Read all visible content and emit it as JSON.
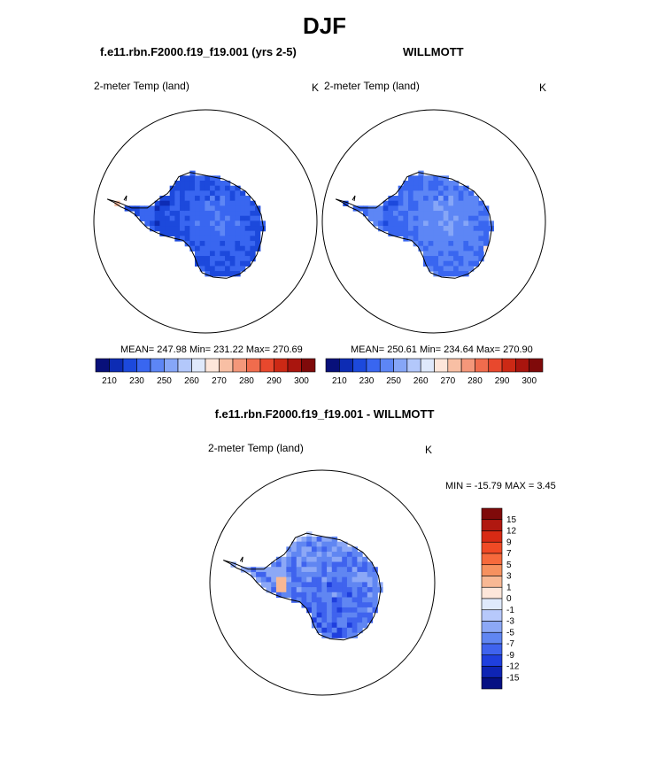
{
  "figure": {
    "title": "DJF",
    "panel_left_title": "f.e11.rbn.F2000.f19_f19.001 (yrs 2-5)",
    "panel_right_title": "WILLMOTT",
    "diff_title": "f.e11.rbn.F2000.f19_f19.001 - WILLMOTT"
  },
  "chart_data": [
    {
      "type": "heatmap",
      "id": "model",
      "title": "f.e11.rbn.F2000.f19_f19.001 (yrs 2-5)",
      "variable": "2-meter Temp (land)",
      "units": "K",
      "region": "Antarctica (south polar stereographic)",
      "stats": "MEAN= 247.98  Min= 231.22  Max= 270.69",
      "mean": 247.98,
      "min": 231.22,
      "max": 270.69,
      "colorbar_orientation": "horizontal",
      "colorbar_labels": [
        "210",
        "230",
        "250",
        "260",
        "270",
        "280",
        "290",
        "300"
      ],
      "colorbar_colors": [
        "#08107a",
        "#0d2cb4",
        "#1c49dc",
        "#3966f0",
        "#5d86f5",
        "#86a6f7",
        "#b3c8fb",
        "#dfe9fb",
        "#fde6da",
        "#f8bfa4",
        "#f4977a",
        "#f06c4d",
        "#e8482d",
        "#cc2915",
        "#a9150e",
        "#7f0a0a"
      ]
    },
    {
      "type": "heatmap",
      "id": "obs",
      "title": "WILLMOTT",
      "variable": "2-meter Temp (land)",
      "units": "K",
      "region": "Antarctica (south polar stereographic)",
      "stats": "MEAN= 250.61  Min= 234.64  Max= 270.90",
      "mean": 250.61,
      "min": 234.64,
      "max": 270.9,
      "colorbar_orientation": "horizontal",
      "colorbar_labels": [
        "210",
        "230",
        "250",
        "260",
        "270",
        "280",
        "290",
        "300"
      ],
      "colorbar_colors": [
        "#08107a",
        "#0d2cb4",
        "#1c49dc",
        "#3966f0",
        "#5d86f5",
        "#86a6f7",
        "#b3c8fb",
        "#dfe9fb",
        "#fde6da",
        "#f8bfa4",
        "#f4977a",
        "#f06c4d",
        "#e8482d",
        "#cc2915",
        "#a9150e",
        "#7f0a0a"
      ]
    },
    {
      "type": "heatmap",
      "id": "diff",
      "title": "f.e11.rbn.F2000.f19_f19.001 - WILLMOTT",
      "variable": "2-meter Temp (land)",
      "units": "K",
      "region": "Antarctica (south polar stereographic)",
      "stats": "MIN = -15.79 MAX =   3.45",
      "min": -15.79,
      "max": 3.45,
      "colorbar_orientation": "vertical",
      "colorbar_labels": [
        "15",
        "12",
        "9",
        "7",
        "5",
        "3",
        "1",
        "0",
        "-1",
        "-3",
        "-5",
        "-7",
        "-9",
        "-12",
        "-15"
      ],
      "colorbar_colors": [
        "#7f0a0a",
        "#b01810",
        "#d82a14",
        "#f04a25",
        "#f66a3c",
        "#f6915f",
        "#f8b894",
        "#fde6da",
        "#dfe9fb",
        "#b7c9fb",
        "#8ca8f6",
        "#6086f2",
        "#3f63ee",
        "#1f3fde",
        "#0e24b4",
        "#061083"
      ]
    }
  ]
}
